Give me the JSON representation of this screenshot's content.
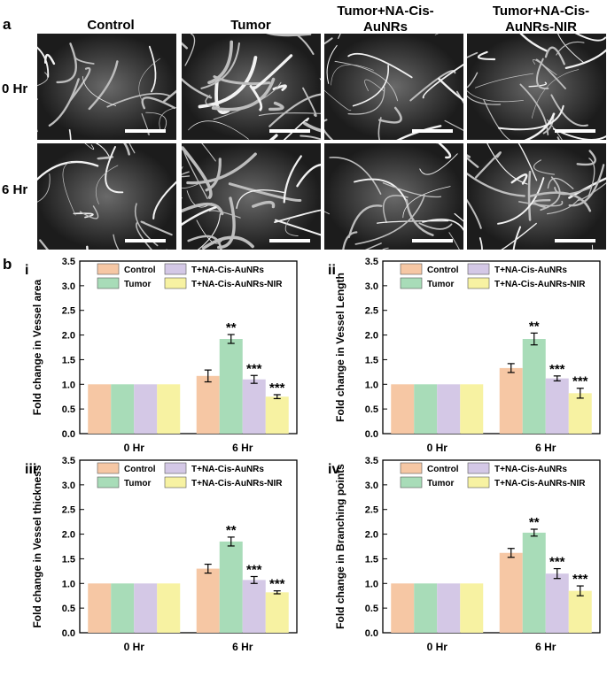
{
  "panel_a": {
    "label": "a",
    "columns": [
      "Control",
      "Tumor",
      "Tumor+NA-Cis-AuNRs",
      "Tumor+NA-Cis-AuNRs-NIR"
    ],
    "rows": [
      "0 Hr",
      "6 Hr"
    ]
  },
  "panel_b": {
    "label": "b"
  },
  "colors": {
    "control": "#f6c7a4",
    "tumor": "#a8dcb8",
    "t_na": "#d4c8e6",
    "t_na_nir": "#f7f2a2"
  },
  "chart_data": [
    {
      "type": "bar",
      "label": "i",
      "title": "",
      "xlabel": "",
      "ylabel": "Fold change in Vessel area",
      "ylim": [
        0,
        3.5
      ],
      "yticks": [
        "0.0",
        "0.5",
        "1.0",
        "1.5",
        "2.0",
        "2.5",
        "3.0",
        "3.5"
      ],
      "categories": [
        "0 Hr",
        "6 Hr"
      ],
      "series": [
        {
          "name": "Control",
          "values": [
            1.0,
            1.17
          ],
          "errors": [
            0,
            0.12
          ],
          "sig": [
            "",
            ""
          ]
        },
        {
          "name": "Tumor",
          "values": [
            1.0,
            1.92
          ],
          "errors": [
            0,
            0.09
          ],
          "sig": [
            "",
            "**"
          ]
        },
        {
          "name": "T+NA-Cis-AuNRs",
          "values": [
            1.0,
            1.1
          ],
          "errors": [
            0,
            0.08
          ],
          "sig": [
            "",
            "***"
          ]
        },
        {
          "name": "T+NA-Cis-AuNRs-NIR",
          "values": [
            1.0,
            0.75
          ],
          "errors": [
            0,
            0.04
          ],
          "sig": [
            "",
            "***"
          ]
        }
      ]
    },
    {
      "type": "bar",
      "label": "ii",
      "title": "",
      "xlabel": "",
      "ylabel": "Fold change in Vessel Length",
      "ylim": [
        0,
        3.5
      ],
      "yticks": [
        "0.0",
        "0.5",
        "1.0",
        "1.5",
        "2.0",
        "2.5",
        "3.0",
        "3.5"
      ],
      "categories": [
        "0 Hr",
        "6 Hr"
      ],
      "series": [
        {
          "name": "Control",
          "values": [
            1.0,
            1.33
          ],
          "errors": [
            0,
            0.09
          ],
          "sig": [
            "",
            ""
          ]
        },
        {
          "name": "Tumor",
          "values": [
            1.0,
            1.92
          ],
          "errors": [
            0,
            0.12
          ],
          "sig": [
            "",
            "**"
          ]
        },
        {
          "name": "T+NA-Cis-AuNRs",
          "values": [
            1.0,
            1.12
          ],
          "errors": [
            0,
            0.05
          ],
          "sig": [
            "",
            "***"
          ]
        },
        {
          "name": "T+NA-Cis-AuNRs-NIR",
          "values": [
            1.0,
            0.82
          ],
          "errors": [
            0,
            0.1
          ],
          "sig": [
            "",
            "***"
          ]
        }
      ]
    },
    {
      "type": "bar",
      "label": "iii",
      "title": "",
      "xlabel": "",
      "ylabel": "Fold change in Vessel thickness",
      "ylim": [
        0,
        3.5
      ],
      "yticks": [
        "0.0",
        "0.5",
        "1.0",
        "1.5",
        "2.0",
        "2.5",
        "3.0",
        "3.5"
      ],
      "categories": [
        "0 Hr",
        "6 Hr"
      ],
      "series": [
        {
          "name": "Control",
          "values": [
            1.0,
            1.3
          ],
          "errors": [
            0,
            0.09
          ],
          "sig": [
            "",
            ""
          ]
        },
        {
          "name": "Tumor",
          "values": [
            1.0,
            1.85
          ],
          "errors": [
            0,
            0.09
          ],
          "sig": [
            "",
            "**"
          ]
        },
        {
          "name": "T+NA-Cis-AuNRs",
          "values": [
            1.0,
            1.07
          ],
          "errors": [
            0,
            0.07
          ],
          "sig": [
            "",
            "***"
          ]
        },
        {
          "name": "T+NA-Cis-AuNRs-NIR",
          "values": [
            1.0,
            0.82
          ],
          "errors": [
            0,
            0.03
          ],
          "sig": [
            "",
            "***"
          ]
        }
      ]
    },
    {
      "type": "bar",
      "label": "iv",
      "title": "",
      "xlabel": "",
      "ylabel": "Fold change in Branching points",
      "ylim": [
        0,
        3.5
      ],
      "yticks": [
        "0.0",
        "0.5",
        "1.0",
        "1.5",
        "2.0",
        "2.5",
        "3.0",
        "3.5"
      ],
      "categories": [
        "0 Hr",
        "6 Hr"
      ],
      "series": [
        {
          "name": "Control",
          "values": [
            1.0,
            1.62
          ],
          "errors": [
            0,
            0.09
          ],
          "sig": [
            "",
            ""
          ]
        },
        {
          "name": "Tumor",
          "values": [
            1.0,
            2.03
          ],
          "errors": [
            0,
            0.07
          ],
          "sig": [
            "",
            "**"
          ]
        },
        {
          "name": "T+NA-Cis-AuNRs",
          "values": [
            1.0,
            1.2
          ],
          "errors": [
            0,
            0.1
          ],
          "sig": [
            "",
            "***"
          ]
        },
        {
          "name": "T+NA-Cis-AuNRs-NIR",
          "values": [
            1.0,
            0.85
          ],
          "errors": [
            0,
            0.1
          ],
          "sig": [
            "",
            "***"
          ]
        }
      ]
    }
  ]
}
